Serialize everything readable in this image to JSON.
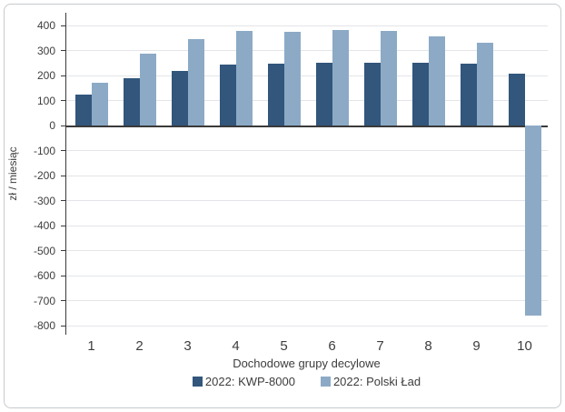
{
  "figure": {
    "background": "#ffffff",
    "border_color": "#c6cacd"
  },
  "colors": {
    "axis_line": "#3a3a3a",
    "gridline": "#e4e5e8",
    "text": "#3d3d3d"
  },
  "chart_data": {
    "type": "bar",
    "title": "",
    "xlabel": "Dochodowe grupy decylowe",
    "ylabel": "zł / miesiąc",
    "categories": [
      "1",
      "2",
      "3",
      "4",
      "5",
      "6",
      "7",
      "8",
      "9",
      "10"
    ],
    "series": [
      {
        "name": "2022: KWP-8000",
        "color": "#32567c",
        "values": [
          125,
          190,
          220,
          244,
          246,
          252,
          250,
          251,
          247,
          206
        ]
      },
      {
        "name": "2022: Polski Ład",
        "color": "#8caac6",
        "values": [
          172,
          287,
          345,
          380,
          376,
          381,
          379,
          355,
          330,
          -760
        ]
      }
    ],
    "ylim": [
      -800,
      400
    ],
    "ytick_step": 100,
    "grid": "horizontal",
    "legend_position": "bottom",
    "zero_line": true
  }
}
